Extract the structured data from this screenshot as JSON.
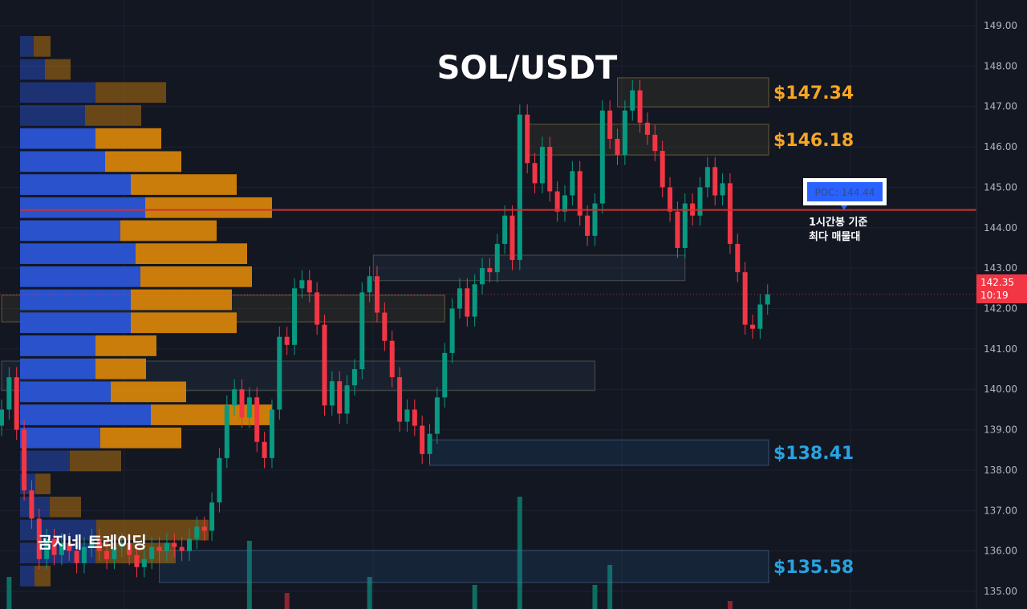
{
  "chart_data": {
    "type": "candlestick",
    "title": "SOL/USDT",
    "watermark": "곰지네 트레이딩",
    "ylim": [
      134.7,
      149.5
    ],
    "y_ticks": [
      "135.00",
      "136.00",
      "137.00",
      "138.00",
      "139.00",
      "140.00",
      "141.00",
      "142.00",
      "143.00",
      "144.00",
      "145.00",
      "146.00",
      "147.00",
      "148.00",
      "149.00"
    ],
    "close": [
      139.5,
      140.3,
      139.0,
      137.5,
      136.8,
      135.8,
      136.3,
      135.9,
      136.2,
      136.0,
      135.7,
      136.1,
      136.3,
      136.0,
      135.8,
      136.1,
      136.2,
      135.9,
      135.6,
      135.8,
      136.1,
      136.0,
      136.2,
      136.1,
      136.0,
      136.3,
      136.6,
      136.5,
      137.2,
      138.3,
      139.6,
      140.0,
      139.3,
      139.8,
      138.7,
      138.3,
      139.5,
      141.3,
      141.1,
      142.5,
      142.7,
      142.4,
      141.6,
      139.6,
      140.2,
      139.4,
      140.1,
      140.5,
      142.4,
      142.8,
      141.9,
      141.2,
      140.3,
      139.2,
      139.5,
      139.1,
      138.4,
      138.9,
      139.8,
      140.9,
      142.0,
      142.5,
      141.8,
      142.6,
      143.0,
      142.9,
      143.6,
      144.3,
      143.2,
      146.8,
      145.6,
      145.1,
      146.0,
      144.9,
      144.4,
      144.8,
      145.4,
      144.3,
      143.8,
      144.6,
      146.9,
      146.2,
      145.8,
      146.9,
      147.4,
      146.6,
      146.3,
      145.9,
      145.0,
      144.4,
      143.5,
      144.6,
      144.3,
      145.0,
      145.5,
      144.8,
      145.1,
      143.6,
      142.9,
      141.6,
      141.5,
      142.1,
      142.35
    ],
    "volume": [
      [
        1,
        8,
        true
      ],
      [
        33,
        17,
        true
      ],
      [
        38,
        4,
        false
      ],
      [
        49,
        8,
        true
      ],
      [
        63,
        6,
        true
      ],
      [
        69,
        28,
        true
      ],
      [
        79,
        6,
        true
      ],
      [
        81,
        11,
        true
      ],
      [
        97,
        2,
        false
      ]
    ],
    "volume_profile": [
      {
        "price": 148.7,
        "buy": 17,
        "sell": 21,
        "in_value_area": false
      },
      {
        "price": 148.2,
        "buy": 31,
        "sell": 32,
        "in_value_area": false
      },
      {
        "price": 147.6,
        "buy": 94,
        "sell": 88,
        "in_value_area": false
      },
      {
        "price": 147.0,
        "buy": 81,
        "sell": 70,
        "in_value_area": false
      },
      {
        "price": 146.5,
        "buy": 94,
        "sell": 82,
        "in_value_area": true
      },
      {
        "price": 145.9,
        "buy": 106,
        "sell": 95,
        "in_value_area": true
      },
      {
        "price": 145.3,
        "buy": 138,
        "sell": 132,
        "in_value_area": true
      },
      {
        "price": 144.44,
        "buy": 156,
        "sell": 158,
        "in_value_area": true
      },
      {
        "price": 144.2,
        "buy": 125,
        "sell": 120,
        "in_value_area": true
      },
      {
        "price": 143.6,
        "buy": 144,
        "sell": 139,
        "in_value_area": true
      },
      {
        "price": 143.0,
        "buy": 150,
        "sell": 139,
        "in_value_area": true
      },
      {
        "price": 142.4,
        "buy": 138,
        "sell": 126,
        "in_value_area": true
      },
      {
        "price": 141.9,
        "buy": 138,
        "sell": 132,
        "in_value_area": true
      },
      {
        "price": 141.3,
        "buy": 94,
        "sell": 76,
        "in_value_area": true
      },
      {
        "price": 140.7,
        "buy": 94,
        "sell": 63,
        "in_value_area": true
      },
      {
        "price": 140.1,
        "buy": 113,
        "sell": 94,
        "in_value_area": true
      },
      {
        "price": 139.6,
        "buy": 163,
        "sell": 151,
        "in_value_area": true
      },
      {
        "price": 139.0,
        "buy": 100,
        "sell": 101,
        "in_value_area": true
      },
      {
        "price": 138.4,
        "buy": 62,
        "sell": 64,
        "in_value_area": false
      },
      {
        "price": 137.8,
        "buy": 19,
        "sell": 19,
        "in_value_area": false
      },
      {
        "price": 137.3,
        "buy": 37,
        "sell": 39,
        "in_value_area": false
      },
      {
        "price": 136.7,
        "buy": 95,
        "sell": 140,
        "in_value_area": false
      },
      {
        "price": 136.1,
        "buy": 94,
        "sell": 100,
        "in_value_area": false
      },
      {
        "price": 135.5,
        "buy": 18,
        "sell": 20,
        "in_value_area": false
      }
    ],
    "zones": [
      {
        "low": 146.99,
        "high": 147.71,
        "start": 82,
        "kind": "supply",
        "label": "$147.34"
      },
      {
        "low": 145.8,
        "high": 146.56,
        "start": 70,
        "kind": "supply",
        "label": "$146.18"
      },
      {
        "low": 142.69,
        "high": 143.32,
        "start": 49.5,
        "end": 91,
        "kind": "mixed"
      },
      {
        "low": 141.67,
        "high": 142.33,
        "start": 0,
        "end": 59,
        "kind": "supply"
      },
      {
        "low": 139.97,
        "high": 140.7,
        "start": 0,
        "end": 79,
        "kind": "mixed"
      },
      {
        "low": 138.12,
        "high": 138.75,
        "start": 57,
        "kind": "demand",
        "label": "$138.41"
      },
      {
        "low": 135.22,
        "high": 136.01,
        "start": 21,
        "kind": "demand",
        "label": "$135.58"
      }
    ],
    "poc": {
      "price": 144.44,
      "label": "POC: 144.44",
      "note_line1": "1시간봉 기준",
      "note_line2": "최다 매물대"
    },
    "last_price": {
      "value": "142.35",
      "countdown": "10:19"
    },
    "colors": {
      "up": "#089981",
      "down": "#f23645",
      "supply_label": "#f5a623",
      "demand_label": "#29a3e0",
      "poc_line": "#d32f2f",
      "buy": "#2a55d6",
      "sell": "#d4830a",
      "background": "#131722"
    }
  }
}
